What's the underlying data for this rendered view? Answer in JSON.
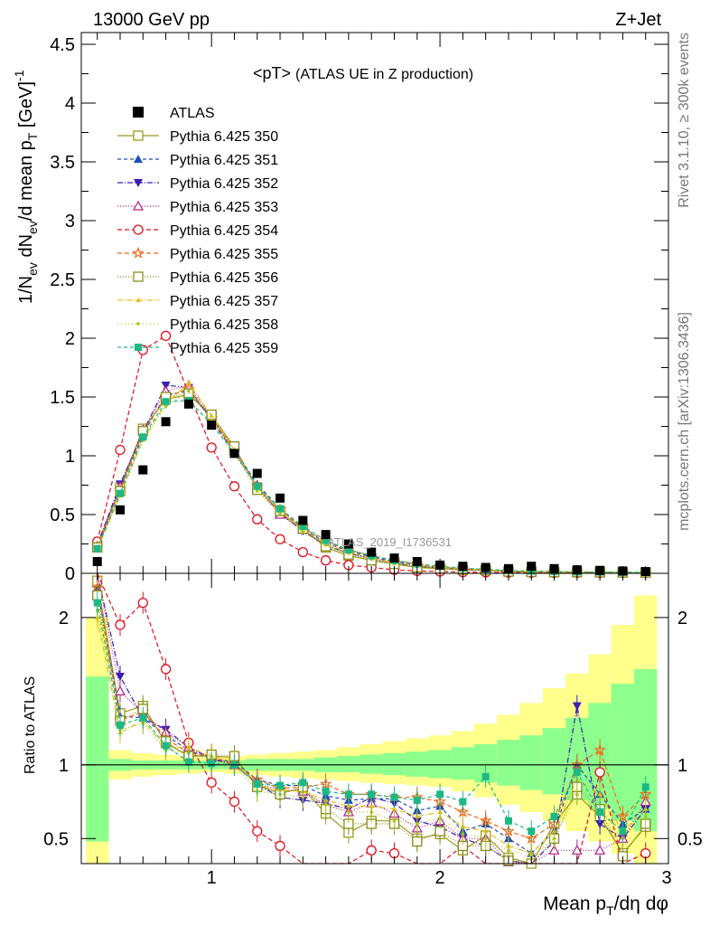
{
  "header": {
    "left": "13000 GeV pp",
    "right": "Z+Jet",
    "side_top": "Rivet 3.1.10, ≥ 300k events",
    "side_bottom": "mcplots.cern.ch [arXiv:1306.3436]",
    "watermark": "ATLAS_2019_I1736531"
  },
  "chart_data": {
    "type": "line",
    "title_main": "<pT>",
    "title_sub": "(ATLAS UE in Z production)",
    "ylabel": "1/N_ev dN_ev/d mean p_T [GeV]^-1",
    "xlabel": "Mean p_T/dη dφ",
    "ratio_ylabel": "Ratio to ATLAS",
    "xlim": [
      0.43,
      3.0
    ],
    "ylim": [
      0,
      4.6
    ],
    "ratio_ylim": [
      0.33,
      2.3
    ],
    "x_ticks": [
      "1",
      "2",
      "3"
    ],
    "y_ticks": [
      "0",
      "0.5",
      "1",
      "1.5",
      "2",
      "2.5",
      "3",
      "3.5",
      "4",
      "4.5"
    ],
    "ratio_y_ticks": [
      "0.5",
      "1",
      "2"
    ],
    "x": [
      0.5,
      0.6,
      0.7,
      0.8,
      0.9,
      1.0,
      1.1,
      1.2,
      1.3,
      1.4,
      1.5,
      1.6,
      1.7,
      1.8,
      1.9,
      2.0,
      2.1,
      2.2,
      2.3,
      2.4,
      2.5,
      2.6,
      2.7,
      2.8,
      2.9
    ],
    "data": {
      "name": "ATLAS",
      "values": [
        0.1,
        0.54,
        0.88,
        1.29,
        1.44,
        1.26,
        1.02,
        0.85,
        0.64,
        0.45,
        0.33,
        0.25,
        0.18,
        0.13,
        0.1,
        0.07,
        0.06,
        0.05,
        0.04,
        0.06,
        0.04,
        0.03,
        0.025,
        0.02,
        0.015
      ]
    },
    "series": [
      {
        "name": "Pythia 6.425 350",
        "color": "#9a9a1e",
        "marker": "square-open",
        "dash": "solid",
        "values": [
          0.23,
          0.73,
          1.23,
          1.48,
          1.52,
          1.34,
          1.07,
          0.73,
          0.52,
          0.38,
          0.22,
          0.15,
          0.11,
          0.08,
          0.05,
          0.04,
          0.03,
          0.026,
          0.015,
          0.012,
          0.01,
          0.01,
          0.01,
          0.008,
          0.007
        ],
        "ratio": [
          2.25,
          1.35,
          1.4,
          1.15,
          1.06,
          1.06,
          1.05,
          0.86,
          0.81,
          0.84,
          0.67,
          0.54,
          0.62,
          0.62,
          0.5,
          0.53,
          0.42,
          0.52,
          0.37,
          0.33,
          0.6,
          0.8,
          0.65,
          0.4,
          0.58
        ]
      },
      {
        "name": "Pythia 6.425 351",
        "color": "#1f4fb4",
        "marker": "triangle-up",
        "dash": "4,3",
        "values": [
          0.22,
          0.72,
          1.18,
          1.52,
          1.55,
          1.32,
          1.05,
          0.76,
          0.55,
          0.38,
          0.26,
          0.19,
          0.14,
          0.1,
          0.07,
          0.05,
          0.035,
          0.03,
          0.02,
          0.015,
          0.012,
          0.01,
          0.009,
          0.008,
          0.007
        ],
        "ratio": [
          2.2,
          1.33,
          1.32,
          1.2,
          1.1,
          1.04,
          1.02,
          0.9,
          0.86,
          0.86,
          0.79,
          0.76,
          0.77,
          0.77,
          0.69,
          0.72,
          0.55,
          0.6,
          0.5,
          0.4,
          0.55,
          1.0,
          0.8,
          0.6,
          0.7
        ]
      },
      {
        "name": "Pythia 6.425 352",
        "color": "#3a1fb0",
        "marker": "triangle-down",
        "dash": "6,2,1,2",
        "values": [
          0.24,
          0.76,
          1.2,
          1.6,
          1.58,
          1.3,
          1.03,
          0.74,
          0.51,
          0.36,
          0.24,
          0.17,
          0.13,
          0.09,
          0.06,
          0.045,
          0.03,
          0.025,
          0.015,
          0.012,
          0.01,
          0.01,
          0.008,
          0.007,
          0.006
        ],
        "ratio": [
          2.35,
          1.6,
          1.32,
          1.24,
          1.12,
          1.04,
          1.0,
          0.87,
          0.78,
          0.76,
          0.74,
          0.7,
          0.78,
          0.74,
          0.62,
          0.58,
          0.5,
          0.45,
          0.35,
          0.3,
          0.48,
          1.4,
          0.6,
          0.5,
          0.7
        ]
      },
      {
        "name": "Pythia 6.425 353",
        "color": "#b0208c",
        "marker": "triangle-open",
        "dash": "1,2",
        "values": [
          0.25,
          0.74,
          1.22,
          1.55,
          1.6,
          1.33,
          1.04,
          0.72,
          0.5,
          0.37,
          0.24,
          0.17,
          0.12,
          0.08,
          0.06,
          0.045,
          0.03,
          0.024,
          0.015,
          0.012,
          0.01,
          0.01,
          0.008,
          0.007,
          0.006
        ],
        "ratio": [
          2.4,
          1.5,
          1.35,
          1.22,
          1.12,
          1.05,
          1.0,
          0.87,
          0.83,
          0.82,
          0.73,
          0.68,
          0.74,
          0.67,
          0.57,
          0.62,
          0.5,
          0.5,
          0.34,
          0.3,
          0.42,
          0.42,
          0.42,
          0.5,
          0.75
        ]
      },
      {
        "name": "Pythia 6.425 354",
        "color": "#e0101e",
        "marker": "circle-open",
        "dash": "5,3",
        "values": [
          0.27,
          1.05,
          1.9,
          2.02,
          1.53,
          1.07,
          0.74,
          0.46,
          0.29,
          0.18,
          0.11,
          0.07,
          0.05,
          0.03,
          0.02,
          0.015,
          0.01,
          0.008,
          0.006,
          0.005,
          0.004,
          0.004,
          0.003,
          0.003,
          0.002
        ],
        "ratio": [
          2.45,
          1.95,
          2.1,
          1.65,
          1.15,
          0.88,
          0.75,
          0.55,
          0.45,
          0.32,
          0.3,
          0.3,
          0.42,
          0.4,
          0.28,
          0.3,
          0.45,
          0.2,
          0.2,
          0.2,
          0.25,
          0.25,
          0.95,
          0.3,
          0.4
        ]
      },
      {
        "name": "Pythia 6.425 355",
        "color": "#f06a1c",
        "marker": "star-open",
        "dash": "5,3",
        "values": [
          0.23,
          0.71,
          1.2,
          1.5,
          1.57,
          1.32,
          1.04,
          0.74,
          0.54,
          0.39,
          0.27,
          0.2,
          0.15,
          0.11,
          0.08,
          0.055,
          0.04,
          0.03,
          0.02,
          0.016,
          0.012,
          0.011,
          0.01,
          0.008,
          0.007
        ],
        "ratio": [
          2.2,
          1.3,
          1.36,
          1.18,
          1.08,
          1.06,
          1.0,
          0.9,
          0.84,
          0.85,
          0.87,
          0.8,
          0.8,
          0.78,
          0.78,
          0.75,
          0.68,
          0.62,
          0.55,
          0.5,
          0.6,
          1.0,
          1.1,
          0.65,
          0.8
        ]
      },
      {
        "name": "Pythia 6.425 356",
        "color": "#8b8b1a",
        "marker": "square-open",
        "dash": "1,2",
        "values": [
          0.22,
          0.7,
          1.21,
          1.5,
          1.53,
          1.35,
          1.08,
          0.71,
          0.53,
          0.38,
          0.23,
          0.16,
          0.11,
          0.08,
          0.05,
          0.04,
          0.03,
          0.025,
          0.015,
          0.012,
          0.01,
          0.01,
          0.008,
          0.007,
          0.006
        ],
        "ratio": [
          2.15,
          1.3,
          1.38,
          1.16,
          1.06,
          1.07,
          1.06,
          0.85,
          0.8,
          0.85,
          0.7,
          0.6,
          0.6,
          0.6,
          0.48,
          0.55,
          0.45,
          0.45,
          0.35,
          0.3,
          0.5,
          0.85,
          0.7,
          0.38,
          0.6
        ]
      },
      {
        "name": "Pythia 6.425 357",
        "color": "#e0c21c",
        "marker": "tri-small",
        "dash": "6,2,1,2",
        "values": [
          0.2,
          0.66,
          1.14,
          1.44,
          1.62,
          1.34,
          1.05,
          0.73,
          0.53,
          0.37,
          0.25,
          0.18,
          0.13,
          0.09,
          0.07,
          0.05,
          0.035,
          0.028,
          0.018,
          0.014,
          0.011,
          0.01,
          0.009,
          0.008,
          0.007
        ],
        "ratio": [
          2.0,
          1.22,
          1.3,
          1.12,
          1.12,
          1.06,
          1.02,
          0.86,
          0.83,
          0.82,
          0.76,
          0.72,
          0.72,
          0.7,
          0.65,
          0.68,
          0.58,
          0.55,
          0.45,
          0.4,
          0.55,
          0.9,
          0.8,
          0.55,
          0.7
        ]
      },
      {
        "name": "Pythia 6.425 358",
        "color": "#a8c418",
        "marker": "dot",
        "dash": "1,3",
        "values": [
          0.21,
          0.67,
          1.13,
          1.42,
          1.55,
          1.3,
          1.02,
          0.7,
          0.51,
          0.35,
          0.24,
          0.17,
          0.12,
          0.08,
          0.06,
          0.045,
          0.032,
          0.025,
          0.017,
          0.013,
          0.01,
          0.01,
          0.008,
          0.007,
          0.006
        ],
        "ratio": [
          2.05,
          1.24,
          1.28,
          1.1,
          1.08,
          1.03,
          1.0,
          0.82,
          0.8,
          0.78,
          0.73,
          0.68,
          0.68,
          0.62,
          0.6,
          0.64,
          0.53,
          0.5,
          0.42,
          0.38,
          0.5,
          0.8,
          0.7,
          0.5,
          0.65
        ]
      },
      {
        "name": "Pythia 6.425 359",
        "color": "#1cb886",
        "marker": "square",
        "dash": "4,3",
        "values": [
          0.21,
          0.68,
          1.16,
          1.46,
          1.47,
          1.27,
          1.02,
          0.74,
          0.55,
          0.4,
          0.28,
          0.2,
          0.15,
          0.11,
          0.08,
          0.06,
          0.045,
          0.035,
          0.025,
          0.02,
          0.015,
          0.012,
          0.011,
          0.009,
          0.008
        ],
        "ratio": [
          2.1,
          1.27,
          1.32,
          1.13,
          1.02,
          1.01,
          1.0,
          0.87,
          0.86,
          0.88,
          0.82,
          0.8,
          0.8,
          0.78,
          0.76,
          0.8,
          0.75,
          0.92,
          0.62,
          0.55,
          0.65,
          0.95,
          0.68,
          0.55,
          0.85
        ]
      }
    ],
    "bands": {
      "x_edges": [
        0.45,
        0.55,
        0.65,
        0.75,
        0.85,
        0.95,
        1.05,
        1.15,
        1.25,
        1.35,
        1.45,
        1.55,
        1.65,
        1.75,
        1.85,
        1.95,
        2.05,
        2.15,
        2.25,
        2.35,
        2.45,
        2.55,
        2.65,
        2.75,
        2.85,
        2.95
      ],
      "yellow_lo": [
        0.33,
        0.9,
        0.92,
        0.93,
        0.94,
        0.95,
        0.94,
        0.93,
        0.92,
        0.91,
        0.9,
        0.89,
        0.88,
        0.87,
        0.86,
        0.85,
        0.82,
        0.78,
        0.73,
        0.68,
        0.62,
        0.55,
        0.48,
        0.4,
        0.33
      ],
      "yellow_hi": [
        2.0,
        1.1,
        1.08,
        1.07,
        1.06,
        1.05,
        1.06,
        1.07,
        1.08,
        1.09,
        1.1,
        1.12,
        1.14,
        1.16,
        1.18,
        1.2,
        1.23,
        1.28,
        1.34,
        1.42,
        1.52,
        1.62,
        1.75,
        1.95,
        2.15
      ],
      "green_lo": [
        0.48,
        0.96,
        0.97,
        0.97,
        0.97,
        0.97,
        0.97,
        0.96,
        0.96,
        0.96,
        0.95,
        0.95,
        0.94,
        0.93,
        0.92,
        0.91,
        0.9,
        0.88,
        0.86,
        0.83,
        0.8,
        0.76,
        0.7,
        0.62,
        0.55
      ],
      "green_hi": [
        1.6,
        1.04,
        1.03,
        1.03,
        1.03,
        1.03,
        1.03,
        1.04,
        1.04,
        1.04,
        1.05,
        1.06,
        1.07,
        1.08,
        1.09,
        1.1,
        1.12,
        1.14,
        1.17,
        1.2,
        1.25,
        1.32,
        1.42,
        1.55,
        1.65
      ]
    },
    "colors": {
      "yellow_band": "#ffff8c",
      "green_band": "#8cff8c",
      "data": "#000000"
    }
  }
}
